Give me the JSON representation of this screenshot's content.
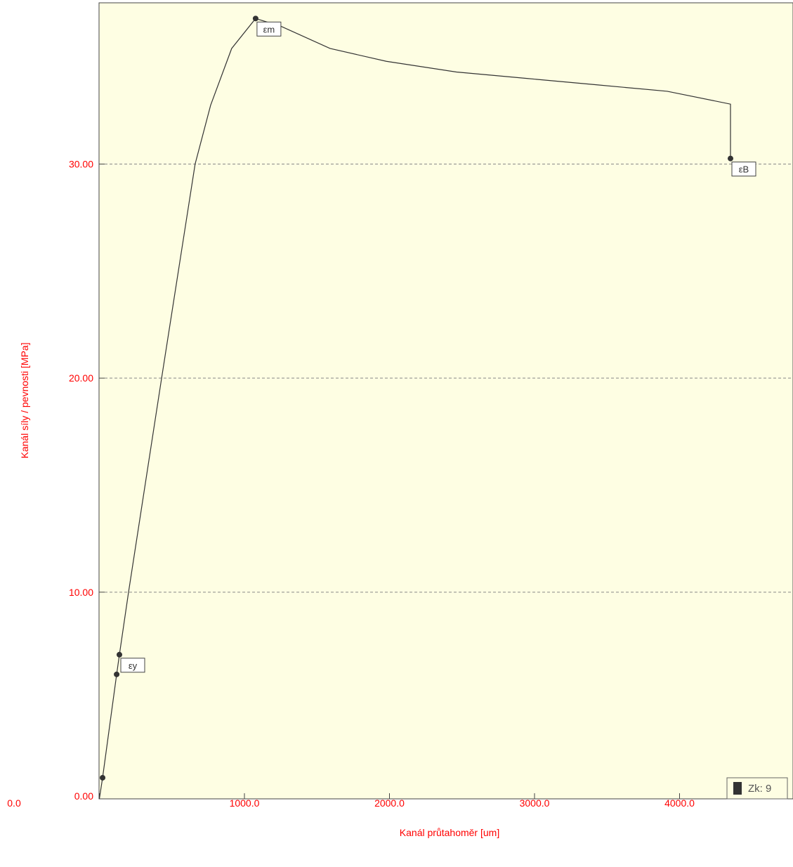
{
  "chart_data": {
    "type": "line",
    "x_label": "Kanál průtahoměr  [um]",
    "y_label": "Kanál síly / pevnosti  [MPa]",
    "xlim": [
      0,
      4782
    ],
    "ylim": [
      0,
      37.5
    ],
    "xticks": [
      {
        "value": 0,
        "label": "0.0"
      },
      {
        "value": 1000,
        "label": "1000.0"
      },
      {
        "value": 2000,
        "label": "2000.0"
      },
      {
        "value": 3000,
        "label": "3000.0"
      },
      {
        "value": 4000,
        "label": "4000.0"
      }
    ],
    "yticks": [
      {
        "value": 0,
        "label": "0.00"
      },
      {
        "value": 10,
        "label": "10.00"
      },
      {
        "value": 20,
        "label": "20.00"
      },
      {
        "value": 30,
        "label": "30.00"
      }
    ],
    "grid": true,
    "series": [
      {
        "name": "Zk: 9",
        "color": "#333333",
        "x": [
          0,
          22,
          119,
          138,
          201,
          429,
          660,
          767,
          912,
          1077,
          1251,
          1590,
          1978,
          2462,
          2947,
          3431,
          3915,
          4351,
          4351
        ],
        "values": [
          0.35,
          1.33,
          6.16,
          7.08,
          10.0,
          20.0,
          30.0,
          32.75,
          35.4,
          36.8,
          36.44,
          35.4,
          34.8,
          34.3,
          34.0,
          33.7,
          33.4,
          32.8,
          30.26
        ]
      }
    ],
    "points": [
      {
        "x": 22,
        "y": 1.33
      },
      {
        "x": 119,
        "y": 6.16
      },
      {
        "x": 138,
        "y": 7.08,
        "label": "εy"
      },
      {
        "x": 1077,
        "y": 36.8,
        "label": "εm"
      },
      {
        "x": 4351,
        "y": 30.26,
        "label": "εB"
      }
    ],
    "legend": "bottom-right"
  }
}
